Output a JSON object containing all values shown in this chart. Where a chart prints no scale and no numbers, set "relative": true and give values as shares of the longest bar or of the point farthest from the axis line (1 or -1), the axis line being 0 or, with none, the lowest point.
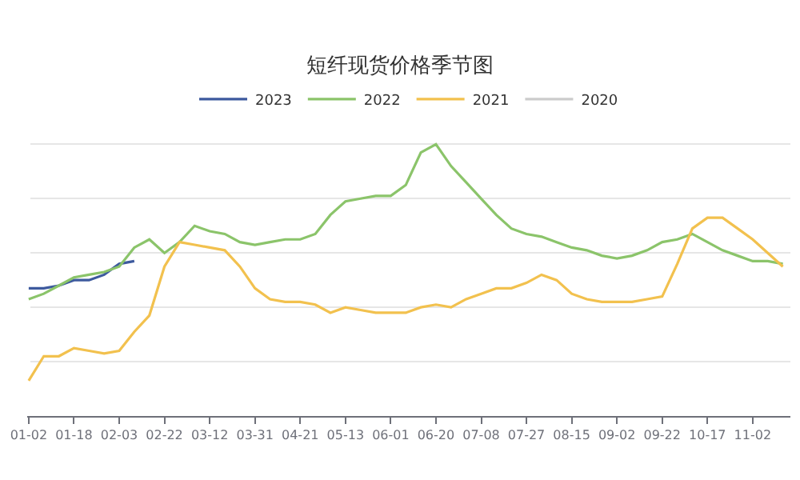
{
  "chart_data": {
    "type": "line",
    "title": "短纤现货价格季节图",
    "relative": true,
    "grid": "y",
    "legend": "top",
    "marker": "none",
    "line_style": "solid",
    "categories": [
      "01-02",
      null,
      null,
      "01-18",
      null,
      null,
      "02-03",
      null,
      null,
      "02-22",
      null,
      null,
      "03-12",
      null,
      null,
      "03-31",
      null,
      null,
      "04-21",
      null,
      null,
      "05-13",
      null,
      null,
      "06-01",
      null,
      null,
      "06-20",
      null,
      null,
      "07-08",
      null,
      null,
      "07-27",
      null,
      null,
      "08-15",
      null,
      null,
      "09-02",
      null,
      null,
      "09-22",
      null,
      null,
      "10-17",
      null,
      null,
      "11-02",
      null,
      null
    ],
    "series": [
      {
        "name": "2023",
        "color": "#3d5a9e",
        "values": [
          0.47,
          0.47,
          0.48,
          0.5,
          0.5,
          0.52,
          0.56,
          0.57,
          null,
          null,
          null,
          null,
          null,
          null,
          null,
          null,
          null,
          null,
          null,
          null,
          null,
          null,
          null,
          null,
          null,
          null,
          null,
          null,
          null,
          null,
          null,
          null,
          null,
          null,
          null,
          null,
          null,
          null,
          null,
          null,
          null,
          null,
          null,
          null,
          null,
          null,
          null,
          null,
          null,
          null,
          null
        ]
      },
      {
        "name": "2022",
        "color": "#8bc46a",
        "values": [
          0.43,
          0.45,
          0.48,
          0.51,
          0.52,
          0.53,
          0.55,
          0.62,
          0.65,
          0.6,
          0.64,
          0.7,
          0.68,
          0.67,
          0.64,
          0.63,
          0.64,
          0.65,
          0.65,
          0.67,
          0.74,
          0.79,
          0.8,
          0.81,
          0.81,
          0.85,
          0.97,
          1,
          0.92,
          0.86,
          0.8,
          0.74,
          0.69,
          0.67,
          0.66,
          0.64,
          0.62,
          0.61,
          0.59,
          0.58,
          0.59,
          0.61,
          0.64,
          0.65,
          0.67,
          0.64,
          0.61,
          0.59,
          0.57,
          0.57,
          0.56
        ]
      },
      {
        "name": "2021",
        "color": "#f2c14e",
        "values": [
          0.13,
          0.22,
          0.22,
          0.25,
          0.24,
          0.23,
          0.24,
          0.31,
          0.37,
          0.55,
          0.64,
          0.63,
          0.62,
          0.61,
          0.55,
          0.47,
          0.43,
          0.42,
          0.42,
          0.41,
          0.38,
          0.4,
          0.39,
          0.38,
          0.38,
          0.38,
          0.4,
          0.41,
          0.4,
          0.43,
          0.45,
          0.47,
          0.47,
          0.49,
          0.52,
          0.5,
          0.45,
          0.43,
          0.42,
          0.42,
          0.42,
          0.43,
          0.44,
          0.56,
          0.69,
          0.73,
          0.73,
          0.69,
          0.65,
          0.6,
          0.55
        ]
      },
      {
        "name": "2020",
        "color": "#cccccc",
        "values": [
          null,
          null,
          null,
          null,
          null,
          null,
          null,
          null,
          null,
          null,
          null,
          null,
          null,
          null,
          null,
          null,
          null,
          null,
          null,
          null,
          null,
          null,
          null,
          null,
          null,
          null,
          null,
          null,
          null,
          null,
          null,
          null,
          null,
          null,
          null,
          null,
          null,
          null,
          null,
          null,
          null,
          null,
          null,
          null,
          null,
          null,
          null,
          null,
          null,
          null,
          null
        ]
      }
    ]
  }
}
